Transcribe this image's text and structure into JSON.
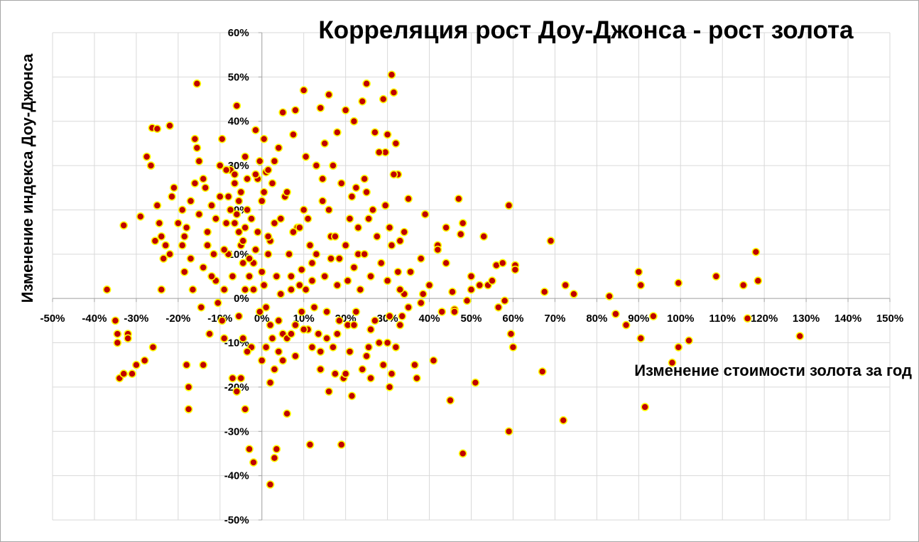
{
  "chart_data": {
    "type": "scatter",
    "title": "Корреляция рост Доу-Джонса - рост золота",
    "xlabel": "Изменение стоимости золота за год",
    "ylabel": "Изменение индекса Доу-Джонса",
    "xlim": [
      -0.5,
      1.5
    ],
    "ylim": [
      -0.5,
      0.6
    ],
    "x_ticks": [
      -0.5,
      -0.4,
      -0.3,
      -0.2,
      -0.1,
      0,
      0.1,
      0.2,
      0.3,
      0.4,
      0.5,
      0.6,
      0.7,
      0.8,
      0.9,
      1.0,
      1.1,
      1.2,
      1.3,
      1.4,
      1.5
    ],
    "x_tick_labels": [
      "-50%",
      "-40%",
      "-30%",
      "-20%",
      "-10%",
      "0%",
      "10%",
      "20%",
      "30%",
      "40%",
      "50%",
      "60%",
      "70%",
      "80%",
      "90%",
      "100%",
      "110%",
      "120%",
      "130%",
      "140%",
      "150%"
    ],
    "y_ticks": [
      0.6,
      0.5,
      0.4,
      0.3,
      0.2,
      0.1,
      0,
      -0.1,
      -0.2,
      -0.3,
      -0.4,
      -0.5
    ],
    "y_tick_labels": [
      "60%",
      "50%",
      "40%",
      "30%",
      "20%",
      "10%",
      "0%",
      "-10%",
      "-20%",
      "-30%",
      "-40%",
      "-50%"
    ],
    "grid": true,
    "colors": {
      "marker_fill": "#c00000",
      "marker_edge": "#ffff00",
      "grid": "#d9d9d9"
    },
    "points": [
      [
        -0.37,
        0.02
      ],
      [
        -0.35,
        -0.05
      ],
      [
        -0.345,
        -0.08
      ],
      [
        -0.345,
        -0.1
      ],
      [
        -0.34,
        -0.18
      ],
      [
        -0.33,
        0.165
      ],
      [
        -0.33,
        -0.17
      ],
      [
        -0.32,
        -0.08
      ],
      [
        -0.32,
        -0.09
      ],
      [
        -0.31,
        -0.17
      ],
      [
        -0.3,
        -0.15
      ],
      [
        -0.29,
        0.185
      ],
      [
        -0.275,
        0.32
      ],
      [
        -0.265,
        0.3
      ],
      [
        -0.262,
        0.385
      ],
      [
        -0.255,
        0.13
      ],
      [
        -0.25,
        0.21
      ],
      [
        -0.25,
        0.383
      ],
      [
        -0.245,
        0.17
      ],
      [
        -0.24,
        0.14
      ],
      [
        -0.235,
        0.09
      ],
      [
        -0.23,
        0.12
      ],
      [
        -0.22,
        0.39
      ],
      [
        -0.215,
        0.23
      ],
      [
        -0.21,
        0.25
      ],
      [
        -0.19,
        0.2
      ],
      [
        -0.185,
        0.14
      ],
      [
        -0.185,
        0.06
      ],
      [
        -0.18,
        0.16
      ],
      [
        -0.18,
        -0.15
      ],
      [
        -0.175,
        -0.2
      ],
      [
        -0.175,
        -0.25
      ],
      [
        -0.17,
        0.22
      ],
      [
        -0.165,
        0.02
      ],
      [
        -0.16,
        0.36
      ],
      [
        -0.155,
        0.34
      ],
      [
        -0.155,
        0.485
      ],
      [
        -0.15,
        0.19
      ],
      [
        -0.145,
        -0.02
      ],
      [
        -0.14,
        0.07
      ],
      [
        -0.14,
        -0.15
      ],
      [
        -0.135,
        0.25
      ],
      [
        -0.13,
        0.12
      ],
      [
        -0.125,
        -0.08
      ],
      [
        -0.12,
        0.21
      ],
      [
        -0.115,
        0.1
      ],
      [
        -0.11,
        0.04
      ],
      [
        -0.105,
        -0.01
      ],
      [
        -0.1,
        0.3
      ],
      [
        -0.095,
        0.36
      ],
      [
        -0.09,
        0.02
      ],
      [
        -0.085,
        0.17
      ],
      [
        -0.08,
        0.23
      ],
      [
        -0.075,
        0.29
      ],
      [
        -0.07,
        -0.18
      ],
      [
        -0.065,
        0.26
      ],
      [
        -0.06,
        0.435
      ],
      [
        -0.055,
        0.15
      ],
      [
        -0.05,
        0.12
      ],
      [
        -0.045,
        -0.09
      ],
      [
        -0.04,
        0.32
      ],
      [
        -0.035,
        0.2
      ],
      [
        -0.03,
        0.05
      ],
      [
        -0.025,
        -0.11
      ],
      [
        -0.02,
        0.08
      ],
      [
        -0.015,
        0.38
      ],
      [
        -0.01,
        0.27
      ],
      [
        -0.005,
        -0.03
      ],
      [
        0.0,
        0.22
      ],
      [
        0.0,
        -0.14
      ],
      [
        0.005,
        0.36
      ],
      [
        0.01,
        0.285
      ],
      [
        0.015,
        0.1
      ],
      [
        0.02,
        -0.06
      ],
      [
        0.025,
        0.26
      ],
      [
        0.03,
        0.17
      ],
      [
        0.035,
        -0.34
      ],
      [
        0.04,
        0.34
      ],
      [
        0.045,
        0.01
      ],
      [
        0.05,
        0.42
      ],
      [
        0.055,
        0.23
      ],
      [
        0.06,
        -0.26
      ],
      [
        0.07,
        0.05
      ],
      [
        0.075,
        0.37
      ],
      [
        0.08,
        0.425
      ],
      [
        0.085,
        0.16
      ],
      [
        0.09,
        0.03
      ],
      [
        0.095,
        -0.03
      ],
      [
        0.1,
        0.47
      ],
      [
        0.105,
        0.32
      ],
      [
        0.11,
        0.18
      ],
      [
        0.115,
        -0.33
      ],
      [
        0.12,
        0.08
      ],
      [
        0.13,
        0.3
      ],
      [
        0.135,
        -0.08
      ],
      [
        0.14,
        0.43
      ],
      [
        0.145,
        0.22
      ],
      [
        0.15,
        0.35
      ],
      [
        0.155,
        -0.03
      ],
      [
        0.16,
        0.46
      ],
      [
        0.165,
        0.14
      ],
      [
        0.17,
        0.3
      ],
      [
        0.175,
        -0.17
      ],
      [
        0.18,
        0.375
      ],
      [
        0.185,
        0.09
      ],
      [
        0.19,
        -0.33
      ],
      [
        0.2,
        0.425
      ],
      [
        0.205,
        -0.06
      ],
      [
        0.21,
        0.18
      ],
      [
        0.215,
        -0.22
      ],
      [
        0.22,
        0.4
      ],
      [
        0.225,
        0.25
      ],
      [
        0.23,
        0.1
      ],
      [
        0.24,
        0.445
      ],
      [
        0.245,
        0.27
      ],
      [
        0.25,
        0.485
      ],
      [
        0.255,
        0.18
      ],
      [
        0.26,
        -0.07
      ],
      [
        0.27,
        0.375
      ],
      [
        0.275,
        0.14
      ],
      [
        0.28,
        -0.1
      ],
      [
        0.29,
        0.45
      ],
      [
        0.295,
        0.33
      ],
      [
        0.3,
        0.37
      ],
      [
        0.305,
        0.16
      ],
      [
        0.31,
        0.505
      ],
      [
        0.315,
        0.465
      ],
      [
        0.32,
        0.35
      ],
      [
        0.325,
        0.28
      ],
      [
        0.33,
        0.13
      ],
      [
        0.305,
        -0.2
      ],
      [
        0.31,
        -0.17
      ],
      [
        0.34,
        0.01
      ],
      [
        0.35,
        0.225
      ],
      [
        0.355,
        0.06
      ],
      [
        0.365,
        -0.15
      ],
      [
        0.37,
        -0.18
      ],
      [
        0.38,
        0.09
      ],
      [
        0.385,
        0.01
      ],
      [
        0.39,
        0.19
      ],
      [
        0.41,
        -0.14
      ],
      [
        0.42,
        0.12
      ],
      [
        0.43,
        -0.03
      ],
      [
        0.44,
        0.16
      ],
      [
        0.45,
        -0.23
      ],
      [
        0.455,
        0.015
      ],
      [
        0.46,
        -0.025
      ],
      [
        0.47,
        0.225
      ],
      [
        0.475,
        0.145
      ],
      [
        0.48,
        0.17
      ],
      [
        0.48,
        -0.35
      ],
      [
        0.49,
        -0.005
      ],
      [
        0.5,
        0.05
      ],
      [
        0.51,
        -0.19
      ],
      [
        0.52,
        0.03
      ],
      [
        0.53,
        0.14
      ],
      [
        0.54,
        0.03
      ],
      [
        0.55,
        0.04
      ],
      [
        0.56,
        0.075
      ],
      [
        0.565,
        -0.02
      ],
      [
        0.575,
        0.08
      ],
      [
        0.58,
        -0.005
      ],
      [
        0.59,
        0.21
      ],
      [
        0.59,
        -0.3
      ],
      [
        0.595,
        -0.08
      ],
      [
        0.6,
        -0.11
      ],
      [
        0.605,
        0.075
      ],
      [
        0.605,
        0.065
      ],
      [
        0.67,
        -0.165
      ],
      [
        0.675,
        0.015
      ],
      [
        0.69,
        0.13
      ],
      [
        0.72,
        -0.275
      ],
      [
        0.725,
        0.03
      ],
      [
        0.745,
        0.01
      ],
      [
        0.83,
        0.005
      ],
      [
        0.845,
        -0.035
      ],
      [
        0.87,
        -0.06
      ],
      [
        0.9,
        0.06
      ],
      [
        0.905,
        0.03
      ],
      [
        0.905,
        -0.09
      ],
      [
        0.915,
        -0.245
      ],
      [
        0.935,
        -0.04
      ],
      [
        0.98,
        -0.145
      ],
      [
        0.995,
        0.035
      ],
      [
        0.995,
        -0.11
      ],
      [
        1.02,
        -0.095
      ],
      [
        1.085,
        0.05
      ],
      [
        1.15,
        0.03
      ],
      [
        1.16,
        -0.045
      ],
      [
        1.18,
        0.105
      ],
      [
        1.185,
        0.04
      ],
      [
        1.285,
        -0.085
      ],
      [
        -0.095,
        -0.05
      ],
      [
        -0.09,
        -0.09
      ],
      [
        -0.08,
        0.1
      ],
      [
        -0.07,
        0.05
      ],
      [
        -0.065,
        0.28
      ],
      [
        -0.06,
        0.19
      ],
      [
        -0.055,
        -0.04
      ],
      [
        -0.05,
        0.24
      ],
      [
        -0.045,
        0.13
      ],
      [
        -0.04,
        0.16
      ],
      [
        -0.035,
        -0.12
      ],
      [
        -0.03,
        0.09
      ],
      [
        -0.02,
        0.02
      ],
      [
        -0.015,
        0.28
      ],
      [
        -0.01,
        0.15
      ],
      [
        0.0,
        0.06
      ],
      [
        0.005,
        0.24
      ],
      [
        0.01,
        -0.02
      ],
      [
        0.015,
        0.29
      ],
      [
        0.02,
        0.13
      ],
      [
        0.025,
        -0.09
      ],
      [
        0.03,
        0.31
      ],
      [
        0.035,
        0.05
      ],
      [
        0.04,
        -0.05
      ],
      [
        0.045,
        0.18
      ],
      [
        0.05,
        -0.08
      ],
      [
        0.06,
        0.24
      ],
      [
        0.065,
        0.1
      ],
      [
        0.07,
        0.02
      ],
      [
        0.075,
        0.15
      ],
      [
        0.08,
        -0.06
      ],
      [
        0.09,
        0.16
      ],
      [
        0.095,
        0.065
      ],
      [
        0.1,
        0.2
      ],
      [
        0.105,
        0.02
      ],
      [
        0.11,
        -0.07
      ],
      [
        0.115,
        0.12
      ],
      [
        0.12,
        0.04
      ],
      [
        0.125,
        -0.02
      ],
      [
        0.13,
        0.1
      ],
      [
        0.14,
        -0.12
      ],
      [
        0.145,
        0.27
      ],
      [
        0.15,
        0.05
      ],
      [
        0.155,
        -0.09
      ],
      [
        0.16,
        0.2
      ],
      [
        0.165,
        0.09
      ],
      [
        0.17,
        -0.11
      ],
      [
        0.175,
        0.14
      ],
      [
        0.18,
        0.03
      ],
      [
        0.185,
        -0.05
      ],
      [
        0.19,
        0.26
      ],
      [
        0.195,
        -0.18
      ],
      [
        0.2,
        0.12
      ],
      [
        0.205,
        0.04
      ],
      [
        0.21,
        -0.12
      ],
      [
        0.215,
        0.23
      ],
      [
        0.22,
        0.07
      ],
      [
        0.225,
        -0.03
      ],
      [
        0.23,
        0.16
      ],
      [
        0.235,
        0.02
      ],
      [
        0.24,
        -0.16
      ],
      [
        0.245,
        0.1
      ],
      [
        0.25,
        0.24
      ],
      [
        0.255,
        -0.11
      ],
      [
        0.26,
        0.05
      ],
      [
        0.265,
        0.2
      ],
      [
        0.27,
        -0.05
      ],
      [
        0.28,
        0.33
      ],
      [
        0.285,
        0.08
      ],
      [
        0.29,
        -0.15
      ],
      [
        0.295,
        0.21
      ],
      [
        0.3,
        0.04
      ],
      [
        0.305,
        -0.04
      ],
      [
        0.31,
        0.12
      ],
      [
        0.315,
        0.28
      ],
      [
        0.32,
        -0.11
      ],
      [
        0.325,
        0.06
      ],
      [
        0.33,
        0.02
      ],
      [
        0.335,
        -0.04
      ],
      [
        0.34,
        0.15
      ],
      [
        -0.28,
        -0.14
      ],
      [
        -0.26,
        -0.11
      ],
      [
        -0.24,
        0.02
      ],
      [
        -0.22,
        0.1
      ],
      [
        -0.2,
        0.17
      ],
      [
        -0.19,
        0.12
      ],
      [
        -0.17,
        0.09
      ],
      [
        -0.16,
        0.26
      ],
      [
        -0.15,
        0.31
      ],
      [
        -0.14,
        0.27
      ],
      [
        -0.13,
        0.15
      ],
      [
        -0.12,
        0.05
      ],
      [
        -0.11,
        0.18
      ],
      [
        -0.1,
        0.23
      ],
      [
        -0.09,
        0.11
      ],
      [
        -0.085,
        0.29
      ],
      [
        -0.075,
        0.2
      ],
      [
        -0.065,
        0.17
      ],
      [
        -0.055,
        0.22
      ],
      [
        -0.045,
        0.08
      ],
      [
        -0.04,
        0.02
      ],
      [
        -0.035,
        0.27
      ],
      [
        -0.025,
        0.18
      ],
      [
        -0.015,
        0.11
      ],
      [
        -0.005,
        0.31
      ],
      [
        0.005,
        0.03
      ],
      [
        0.015,
        0.14
      ],
      [
        0.02,
        -0.19
      ],
      [
        0.03,
        -0.16
      ],
      [
        0.04,
        -0.12
      ],
      [
        -0.06,
        -0.21
      ],
      [
        -0.05,
        -0.18
      ],
      [
        -0.04,
        -0.25
      ],
      [
        -0.03,
        -0.34
      ],
      [
        -0.02,
        -0.37
      ],
      [
        0.01,
        -0.11
      ],
      [
        0.02,
        -0.42
      ],
      [
        0.03,
        -0.36
      ],
      [
        0.05,
        -0.14
      ],
      [
        0.06,
        -0.09
      ],
      [
        0.07,
        -0.08
      ],
      [
        0.08,
        -0.13
      ],
      [
        0.1,
        -0.07
      ],
      [
        0.12,
        -0.11
      ],
      [
        0.14,
        -0.16
      ],
      [
        0.16,
        -0.21
      ],
      [
        0.18,
        -0.08
      ],
      [
        0.2,
        -0.17
      ],
      [
        0.22,
        -0.06
      ],
      [
        0.25,
        -0.13
      ],
      [
        0.26,
        -0.18
      ],
      [
        0.3,
        -0.1
      ],
      [
        0.33,
        -0.06
      ],
      [
        0.35,
        -0.02
      ],
      [
        0.38,
        -0.01
      ],
      [
        0.4,
        0.03
      ],
      [
        0.42,
        0.11
      ],
      [
        0.44,
        0.08
      ],
      [
        0.46,
        -0.03
      ],
      [
        0.5,
        0.02
      ]
    ]
  }
}
